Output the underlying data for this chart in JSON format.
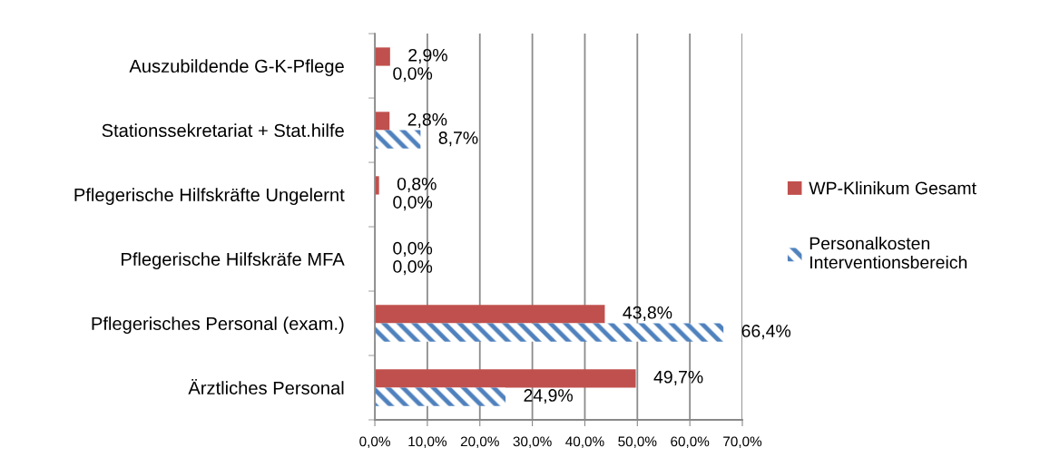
{
  "chart_data": {
    "type": "bar",
    "orientation": "horizontal",
    "categories": [
      "Auszubildende G-K-Pflege",
      "Stationssekretariat + Stat.hilfe",
      "Pflegerische Hilfskräfte Ungelernt",
      "Pflegerische Hilfskräfe MFA",
      "Pflegerisches Personal (exam.)",
      "Ärztliches Personal"
    ],
    "series": [
      {
        "name": "WP-Klinikum Gesamt",
        "color": "#c0504d",
        "values": [
          2.9,
          2.8,
          0.8,
          0.0,
          43.8,
          49.7
        ],
        "value_labels": [
          "2,9%",
          "2,8%",
          "0,8%",
          "0,0%",
          "43,8%",
          "49,7%"
        ]
      },
      {
        "name": "Personalkosten\nInterventionsbereich",
        "color": "#4f81bd",
        "values": [
          0.0,
          8.7,
          0.0,
          0.0,
          66.4,
          24.9
        ],
        "value_labels": [
          "0,0%",
          "8,7%",
          "0,0%",
          "0,0%",
          "66,4%",
          "24,9%"
        ]
      }
    ],
    "xlim": [
      0,
      70
    ],
    "xticks": [
      {
        "value": 0,
        "label": "0,0%"
      },
      {
        "value": 10,
        "label": "10,0%"
      },
      {
        "value": 20,
        "label": "20,0%"
      },
      {
        "value": 30,
        "label": "30,0%"
      },
      {
        "value": 40,
        "label": "40,0%"
      },
      {
        "value": 50,
        "label": "50,0%"
      },
      {
        "value": 60,
        "label": "60,0%"
      },
      {
        "value": 70,
        "label": "70,0%"
      }
    ],
    "grid": "x",
    "legend": "right"
  }
}
